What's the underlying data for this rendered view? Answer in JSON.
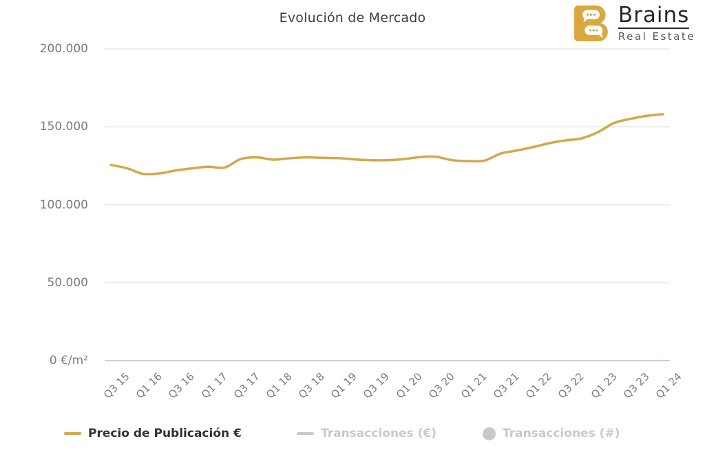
{
  "logo": {
    "brand": "Brains",
    "subtitle": "Real Estate"
  },
  "colors": {
    "background": "#FFFFFF",
    "gold_line": "#D3A94A",
    "logo_gold": "#DBA83C",
    "title": "#3F3F3F",
    "axis_label": "#7B7B7B",
    "gridline": "#EDEDED",
    "zero_line": "#C7D0DE",
    "legend_active": "#303030",
    "legend_inactive": "#C9C9C9"
  },
  "chart_data": {
    "type": "line",
    "title": "Evolución de Mercado",
    "xlabel": "",
    "ylabel": "€/m²",
    "ylim": [
      0,
      200000
    ],
    "grid": true,
    "legend_position": "bottom",
    "x": [
      "Q3 15",
      "Q4 15",
      "Q1 16",
      "Q2 16",
      "Q3 16",
      "Q4 16",
      "Q1 17",
      "Q2 17",
      "Q3 17",
      "Q4 17",
      "Q1 18",
      "Q2 18",
      "Q3 18",
      "Q4 18",
      "Q1 19",
      "Q2 19",
      "Q3 19",
      "Q4 19",
      "Q1 20",
      "Q2 20",
      "Q3 20",
      "Q4 20",
      "Q1 21",
      "Q2 21",
      "Q3 21",
      "Q4 21",
      "Q1 22",
      "Q2 22",
      "Q3 22",
      "Q4 22",
      "Q1 23",
      "Q2 23",
      "Q3 23",
      "Q4 23",
      "Q1 24"
    ],
    "x_tick_every": 2,
    "x_label_rotation": -45,
    "y_ticks": [
      {
        "value": 200000,
        "label": "200.000"
      },
      {
        "value": 150000,
        "label": "150.000"
      },
      {
        "value": 100000,
        "label": "100.000"
      },
      {
        "value": 50000,
        "label": "50.000"
      },
      {
        "value": 0,
        "label": "0 €/m²"
      }
    ],
    "series": [
      {
        "name": "Precio de Publicación €",
        "marker": "line",
        "visible": true,
        "values": [
          125500,
          123400,
          119800,
          120100,
          122000,
          123300,
          124400,
          123800,
          129300,
          130400,
          128900,
          129800,
          130400,
          130100,
          129900,
          129100,
          128600,
          128600,
          129200,
          130500,
          130800,
          128600,
          128000,
          128300,
          132800,
          134800,
          137000,
          139500,
          141300,
          142600,
          146600,
          152500,
          155100,
          157000,
          158100
        ]
      },
      {
        "name": "Transacciones (€)",
        "marker": "line",
        "visible": false,
        "values": []
      },
      {
        "name": "Transacciones (#)",
        "marker": "circle",
        "visible": false,
        "values": []
      }
    ]
  }
}
